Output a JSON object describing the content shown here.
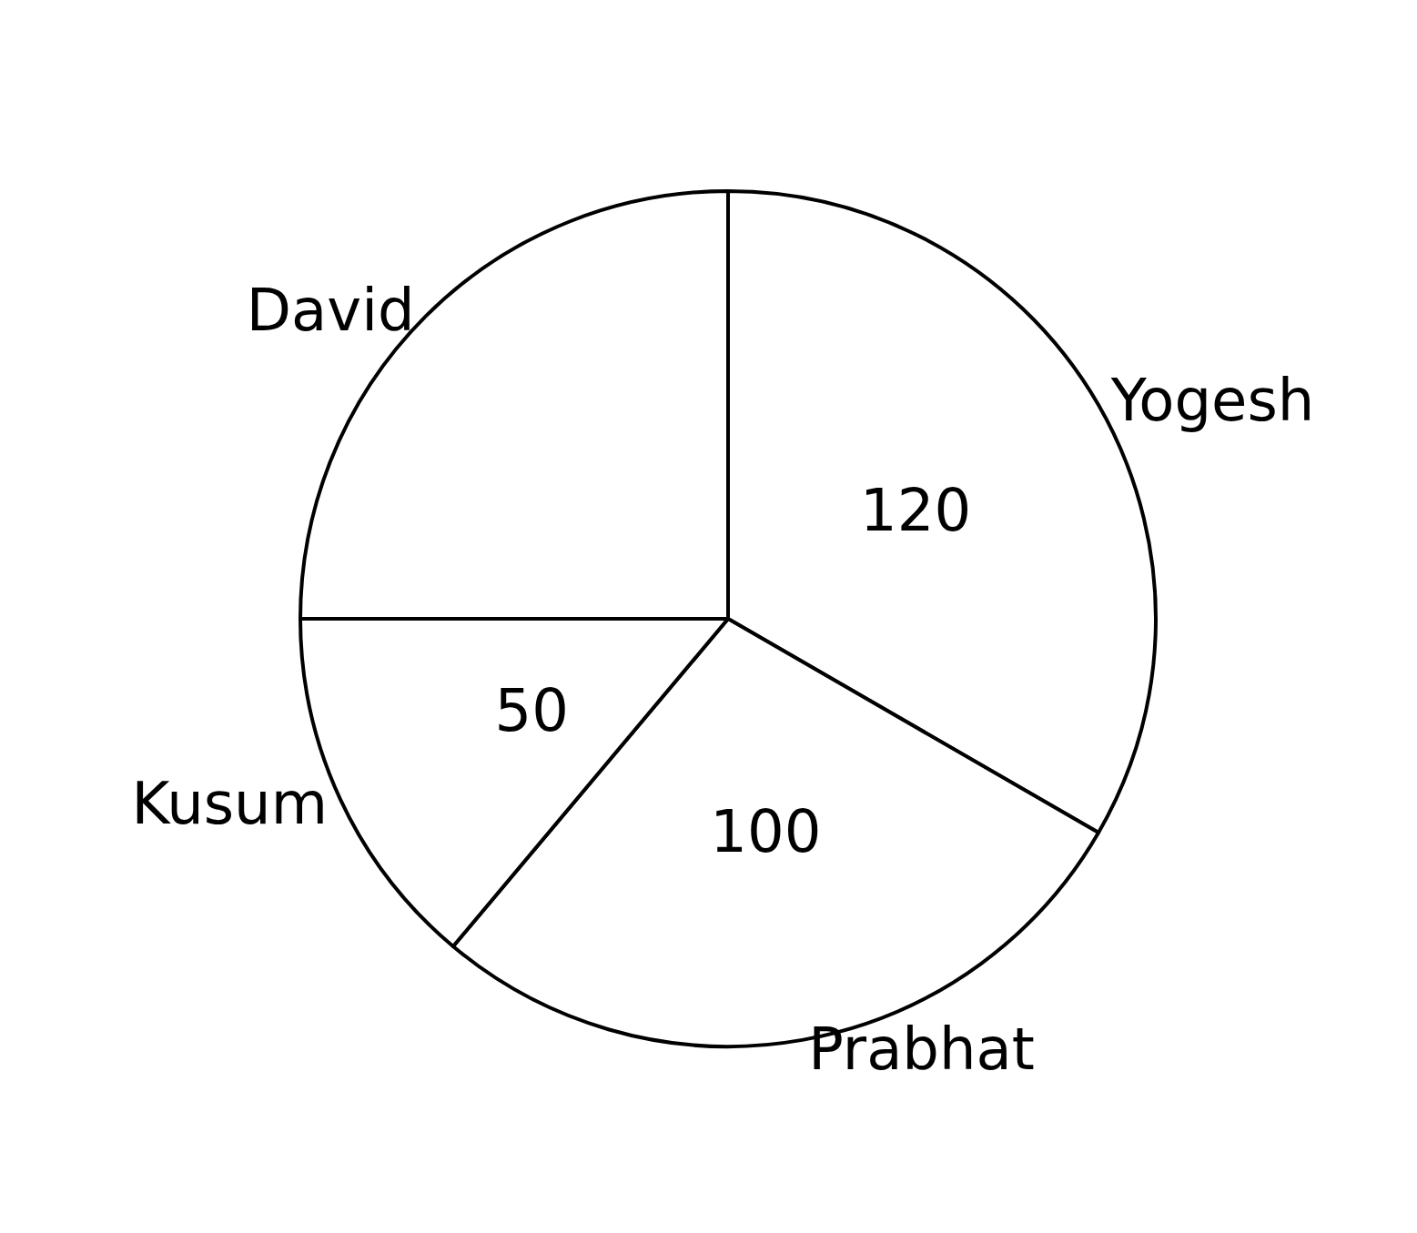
{
  "chart_data": {
    "type": "pie",
    "categories": [
      "Yogesh",
      "Prabhat",
      "Kusum",
      "David"
    ],
    "values": [
      120,
      100,
      50,
      90
    ],
    "value_labels": [
      "120",
      "100",
      "50",
      null
    ],
    "data_labels": true,
    "color": "#ffffff"
  }
}
